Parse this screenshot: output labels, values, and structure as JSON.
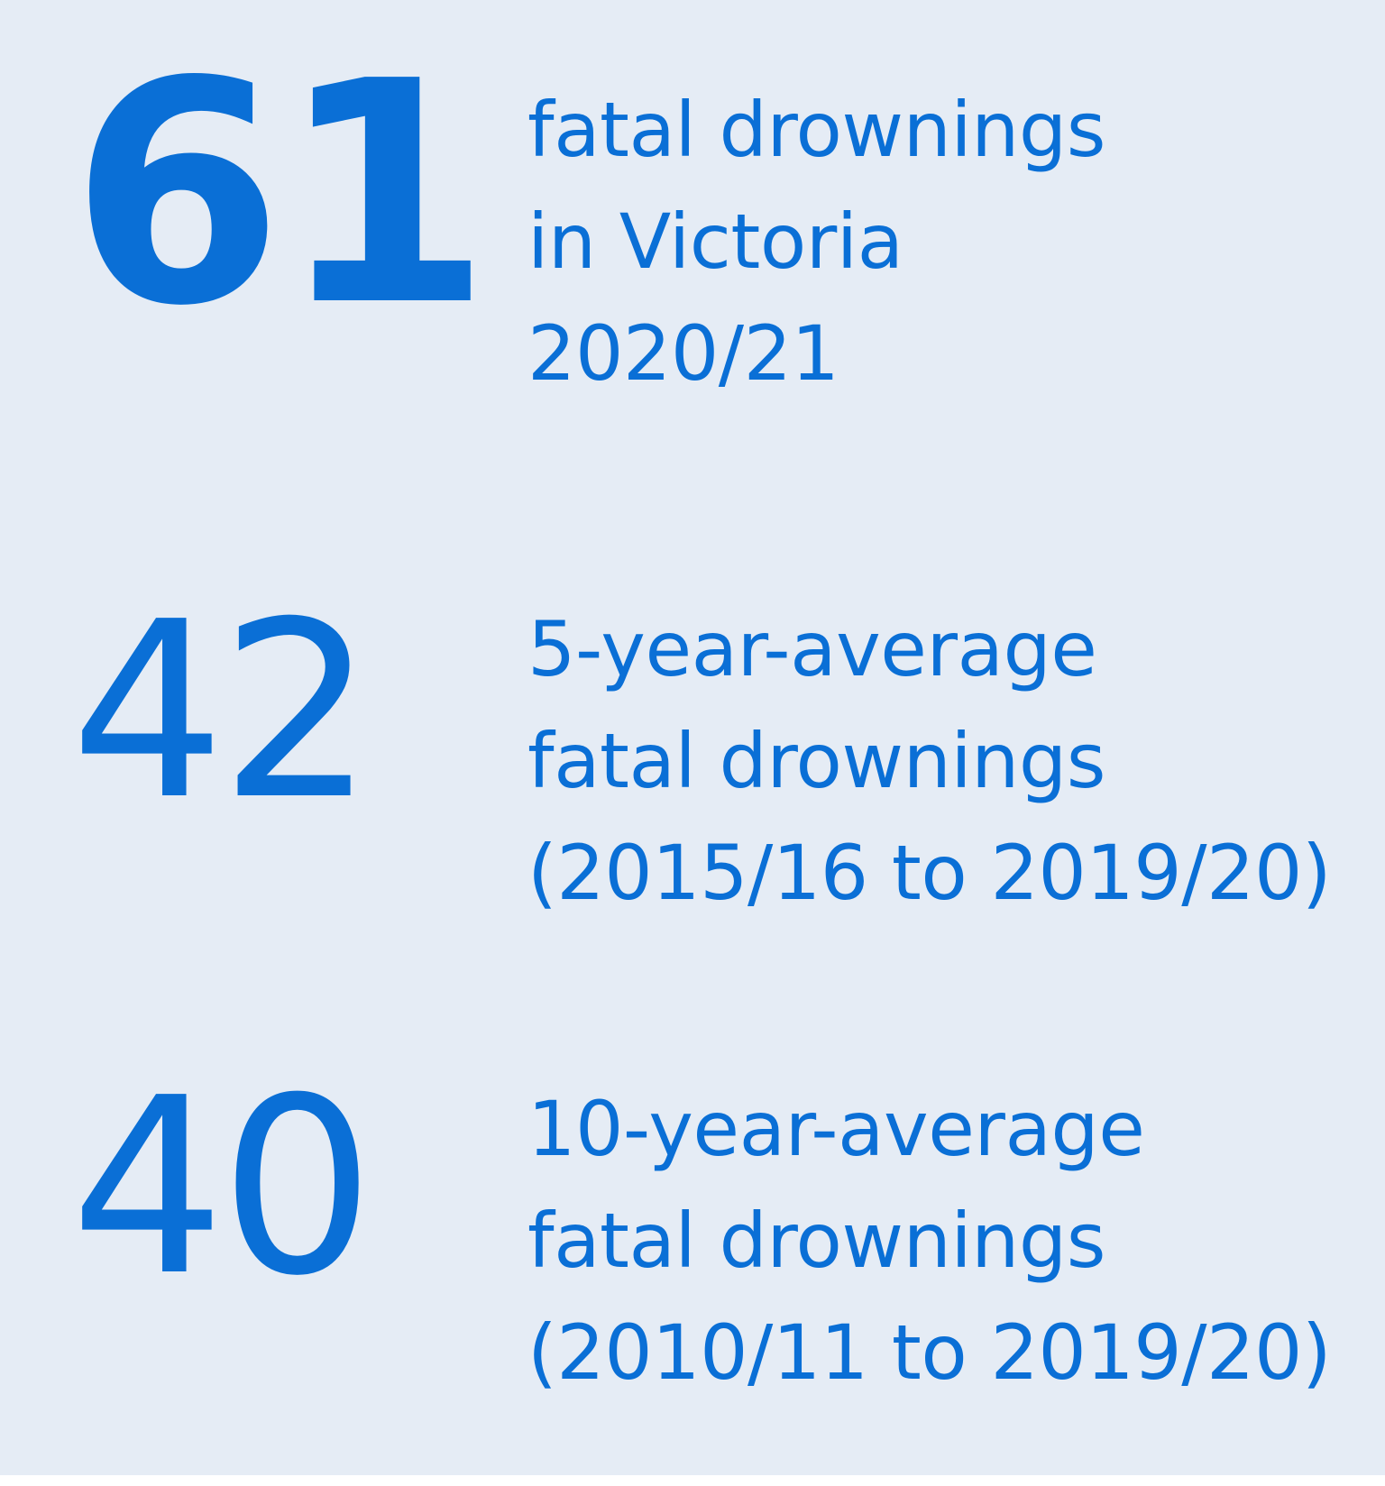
{
  "stats": [
    {
      "value": "61",
      "lines": [
        "fatal drownings",
        "in Victoria",
        "2020/21"
      ]
    },
    {
      "value": "42",
      "lines": [
        "5-year-average",
        "fatal drownings",
        "(2015/16 to 2019/20)"
      ]
    },
    {
      "value": "40",
      "lines": [
        "10-year-average",
        "fatal drownings",
        "(2010/11 to 2019/20)"
      ]
    }
  ],
  "colors": {
    "text": "#0a6fd6",
    "background": "#e5ecf5"
  }
}
